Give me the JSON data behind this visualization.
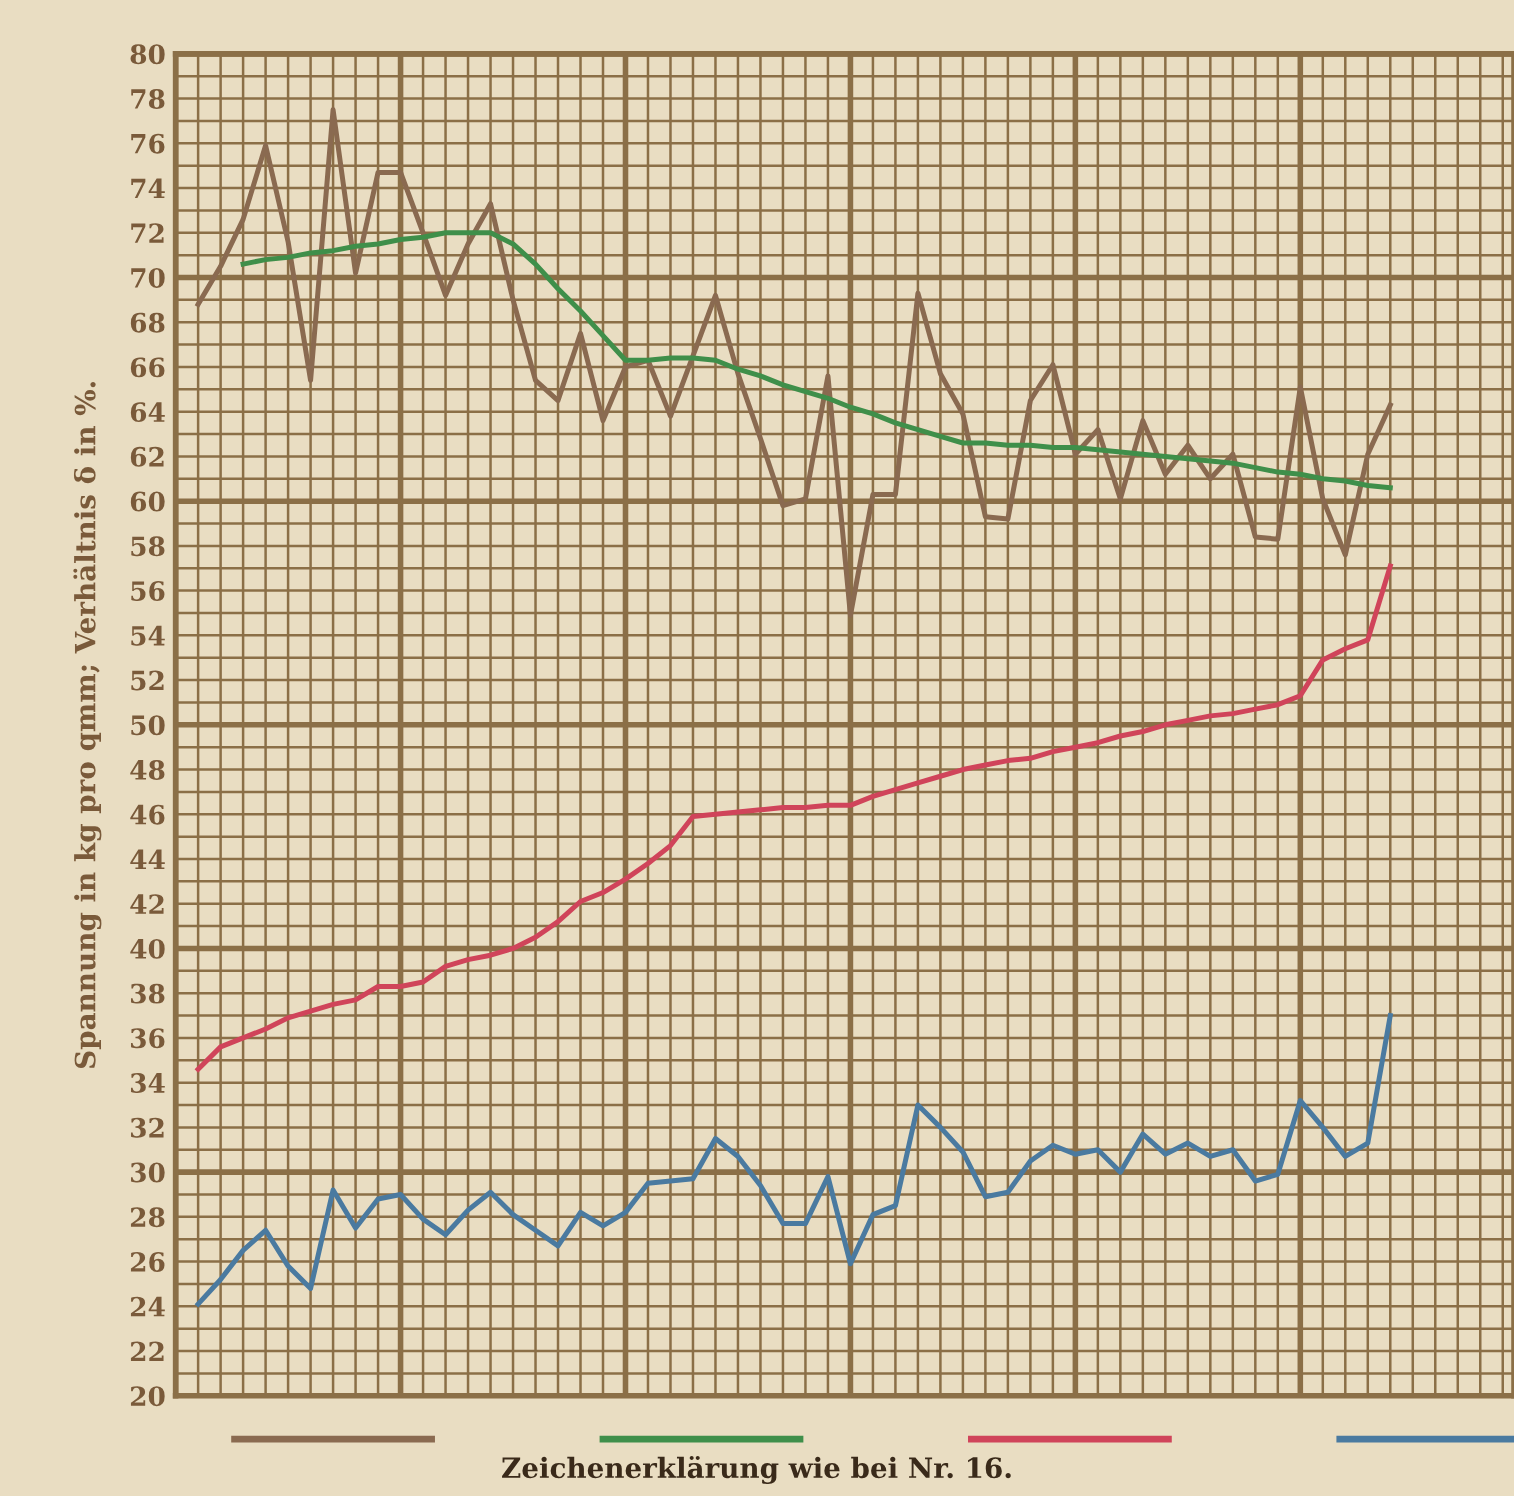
{
  "chart_data": {
    "type": "line",
    "ylabel": "Spannung in kg pro qmm; Verhältnis δ in %.",
    "annotations": [
      "Zeichenerklärung wie bei Nr. 16."
    ],
    "categories": [
      null,
      null,
      null,
      null,
      null,
      null,
      null,
      null,
      null,
      null,
      null,
      null,
      null,
      null,
      null,
      null,
      null,
      null,
      null,
      null,
      null,
      null,
      null,
      null,
      null,
      null,
      null,
      null,
      null,
      null,
      null,
      null,
      null,
      null,
      null,
      null,
      null,
      null,
      null,
      null,
      null,
      null,
      null,
      null,
      null,
      null,
      null,
      null,
      null,
      null,
      null,
      null,
      null,
      null
    ],
    "ylim": [
      20,
      80
    ],
    "yticks": [
      20,
      {
        "value": 21,
        "label": null
      },
      22,
      {
        "value": 23,
        "label": null
      },
      24,
      {
        "value": 25,
        "label": null
      },
      26,
      {
        "value": 27,
        "label": null
      },
      28,
      {
        "value": 29,
        "label": null
      },
      30,
      {
        "value": 31,
        "label": null
      },
      32,
      {
        "value": 33,
        "label": null
      },
      34,
      {
        "value": 35,
        "label": null
      },
      36,
      {
        "value": 37,
        "label": null
      },
      38,
      {
        "value": 39,
        "label": null
      },
      40,
      {
        "value": 41,
        "label": null
      },
      42,
      {
        "value": 43,
        "label": null
      },
      44,
      {
        "value": 45,
        "label": null
      },
      46,
      {
        "value": 47,
        "label": null
      },
      48,
      {
        "value": 49,
        "label": null
      },
      50,
      {
        "value": 51,
        "label": null
      },
      52,
      {
        "value": 53,
        "label": null
      },
      54,
      {
        "value": 55,
        "label": null
      },
      56,
      {
        "value": 57,
        "label": null
      },
      58,
      {
        "value": 59,
        "label": null
      },
      60,
      {
        "value": 61,
        "label": null
      },
      62,
      {
        "value": 63,
        "label": null
      },
      64,
      {
        "value": 65,
        "label": null
      },
      66,
      {
        "value": 67,
        "label": null
      },
      68,
      {
        "value": 69,
        "label": null
      },
      70,
      {
        "value": 71,
        "label": null
      },
      72,
      {
        "value": 73,
        "label": null
      },
      74,
      {
        "value": 75,
        "label": null
      },
      76,
      {
        "value": 77,
        "label": null
      },
      78,
      {
        "value": 79,
        "label": null
      },
      80
    ],
    "grid": true,
    "tick_labels": "y",
    "line_style": "solid",
    "series": [
      {
        "color": "#8a6a50",
        "values": [
          68.8,
          70.5,
          72.6,
          75.9,
          71.6,
          65.4,
          77.5,
          70.2,
          74.7,
          74.7,
          72,
          69.2,
          71.5,
          73.3,
          69,
          65.4,
          64.5,
          67.5,
          63.6,
          66,
          66.3,
          63.8,
          66.5,
          69.2,
          65.7,
          62.8,
          59.8,
          60.1,
          65.6,
          54.9,
          60.3,
          60.3,
          69.3,
          65.7,
          63.9,
          59.3,
          59.2,
          64.5,
          66.1,
          62.1,
          63.2,
          60.1,
          63.6,
          61.2,
          62.5,
          61,
          62.1,
          58.4,
          58.3,
          65.1,
          60.1,
          57.6,
          62.1,
          64.3
        ]
      },
      {
        "color": "#3f8f4a",
        "values": [
          null,
          null,
          70.6,
          70.8,
          70.9,
          71.1,
          71.2,
          71.4,
          71.5,
          71.7,
          71.8,
          72,
          72,
          72,
          71.5,
          70.6,
          69.5,
          68.5,
          67.4,
          66.3,
          66.3,
          66.4,
          66.4,
          66.3,
          65.9,
          65.6,
          65.2,
          64.9,
          64.6,
          64.2,
          63.9,
          63.5,
          63.2,
          62.9,
          62.6,
          62.6,
          62.5,
          62.5,
          62.4,
          62.4,
          62.3,
          62.2,
          62.1,
          62.0,
          61.9,
          61.8,
          61.7,
          61.5,
          61.3,
          61.2,
          61.0,
          60.9,
          60.7,
          60.6
        ]
      },
      {
        "color": "#d0445a",
        "values": [
          34.6,
          35.6,
          36,
          36.4,
          36.9,
          37.2,
          37.5,
          37.7,
          38.3,
          38.3,
          38.5,
          39.2,
          39.5,
          39.7,
          40,
          40.5,
          41.2,
          42.1,
          42.5,
          43.1,
          43.8,
          44.6,
          45.9,
          46.0,
          46.1,
          46.2,
          46.3,
          46.3,
          46.4,
          46.4,
          46.8,
          47.1,
          47.4,
          47.7,
          48.0,
          48.2,
          48.4,
          48.5,
          48.8,
          49.0,
          49.2,
          49.5,
          49.7,
          50.0,
          50.2,
          50.4,
          50.5,
          50.7,
          50.9,
          51.3,
          52.9,
          53.4,
          53.8,
          57.1
        ]
      },
      {
        "color": "#4a7aa0",
        "values": [
          24.1,
          25.2,
          26.5,
          27.4,
          25.8,
          24.8,
          29.2,
          27.5,
          28.8,
          29.0,
          27.9,
          27.2,
          28.3,
          29.1,
          28.1,
          27.4,
          26.7,
          28.2,
          27.6,
          28.2,
          29.5,
          29.6,
          29.7,
          31.5,
          30.7,
          29.4,
          27.7,
          27.7,
          29.8,
          25.9,
          28.1,
          28.5,
          33.0,
          32,
          30.9,
          28.9,
          29.1,
          30.5,
          31.2,
          30.8,
          31.0,
          30,
          31.7,
          30.8,
          31.3,
          30.7,
          31,
          29.6,
          29.9,
          33.2,
          32,
          30.7,
          31.3,
          37.0
        ]
      }
    ]
  }
}
